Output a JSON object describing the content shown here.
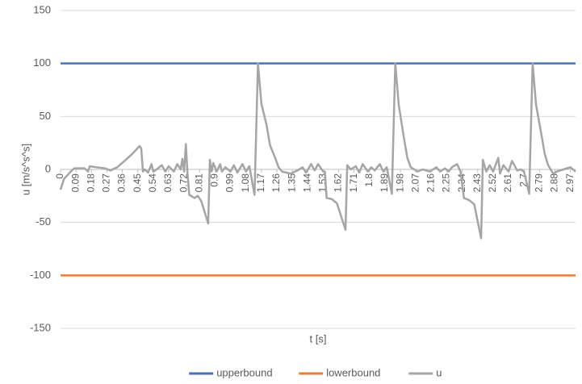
{
  "chart_data": {
    "type": "line",
    "xlabel": "t [s]",
    "ylabel": "u [m/s^s^s]",
    "xlim": [
      0,
      3
    ],
    "ylim": [
      -150,
      150
    ],
    "yticks": [
      -150,
      -100,
      -50,
      0,
      50,
      100,
      150
    ],
    "xticks": [
      0,
      0.09,
      0.18,
      0.27,
      0.36,
      0.45,
      0.54,
      0.63,
      0.72,
      0.81,
      0.9,
      0.99,
      1.08,
      1.17,
      1.26,
      1.35,
      1.44,
      1.53,
      1.62,
      1.71,
      1.8,
      1.89,
      1.98,
      2.07,
      2.16,
      2.25,
      2.34,
      2.43,
      2.52,
      2.61,
      2.7,
      2.79,
      2.88,
      2.97
    ],
    "grid": true,
    "legend": "bottom",
    "series": [
      {
        "name": "upperbound",
        "color": "#4472c4",
        "x": [
          0,
          3
        ],
        "values": [
          100,
          100
        ]
      },
      {
        "name": "lowerbound",
        "color": "#ed7d31",
        "x": [
          0,
          3
        ],
        "values": [
          -100,
          -100
        ]
      },
      {
        "name": "u",
        "color": "#a5a5a5",
        "x": [
          0,
          0.02,
          0.06,
          0.08,
          0.14,
          0.16,
          0.17,
          0.21,
          0.26,
          0.29,
          0.33,
          0.38,
          0.42,
          0.46,
          0.47,
          0.48,
          0.49,
          0.51,
          0.53,
          0.54,
          0.56,
          0.59,
          0.61,
          0.63,
          0.66,
          0.68,
          0.7,
          0.71,
          0.72,
          0.73,
          0.74,
          0.75,
          0.78,
          0.8,
          0.82,
          0.86,
          0.87,
          0.88,
          0.89,
          0.91,
          0.93,
          0.94,
          0.96,
          0.99,
          1.01,
          1.03,
          1.06,
          1.08,
          1.1,
          1.13,
          1.15,
          1.17,
          1.2,
          1.22,
          1.25,
          1.27,
          1.29,
          1.34,
          1.38,
          1.41,
          1.43,
          1.46,
          1.48,
          1.5,
          1.53,
          1.54,
          1.55,
          1.58,
          1.61,
          1.66,
          1.67,
          1.69,
          1.72,
          1.74,
          1.76,
          1.79,
          1.81,
          1.83,
          1.86,
          1.88,
          1.9,
          1.93,
          1.95,
          1.97,
          2.0,
          2.02,
          2.04,
          2.08,
          2.11,
          2.15,
          2.19,
          2.21,
          2.24,
          2.26,
          2.28,
          2.31,
          2.33,
          2.35,
          2.38,
          2.41,
          2.45,
          2.46,
          2.48,
          2.5,
          2.52,
          2.55,
          2.56,
          2.58,
          2.61,
          2.63,
          2.66,
          2.68,
          2.7,
          2.73,
          2.75,
          2.77,
          2.8,
          2.82,
          2.84,
          2.87,
          2.89,
          2.93,
          2.97,
          3.0
        ],
        "values": [
          -19,
          -9,
          -2,
          1,
          1,
          -2,
          3,
          2,
          1,
          -1,
          2,
          9,
          15,
          22,
          20,
          -2,
          0,
          -3,
          5,
          -2,
          0,
          4,
          -2,
          3,
          -2,
          5,
          0,
          10,
          -2,
          24,
          -5,
          -24,
          -27,
          -25,
          -30,
          -51,
          9,
          -2,
          6,
          -2,
          5,
          -2,
          2,
          -2,
          4,
          -3,
          5,
          -2,
          3,
          -24,
          100,
          62,
          42,
          23,
          11,
          2,
          -2,
          -4,
          -1,
          2,
          -3,
          5,
          -1,
          5,
          -2,
          -2,
          -27,
          -28,
          -32,
          -57,
          4,
          0,
          3,
          -3,
          5,
          -2,
          2,
          -1,
          5,
          -2,
          2,
          -23,
          100,
          61,
          30,
          11,
          2,
          -2,
          0,
          -2,
          2,
          -2,
          1,
          -2,
          2,
          5,
          -2,
          -27,
          -29,
          -33,
          -65,
          9,
          -2,
          4,
          -2,
          11,
          -4,
          4,
          -2,
          8,
          -1,
          0,
          -2,
          -23,
          100,
          61,
          34,
          15,
          4,
          -4,
          -2,
          0,
          2,
          -2
        ]
      }
    ]
  }
}
